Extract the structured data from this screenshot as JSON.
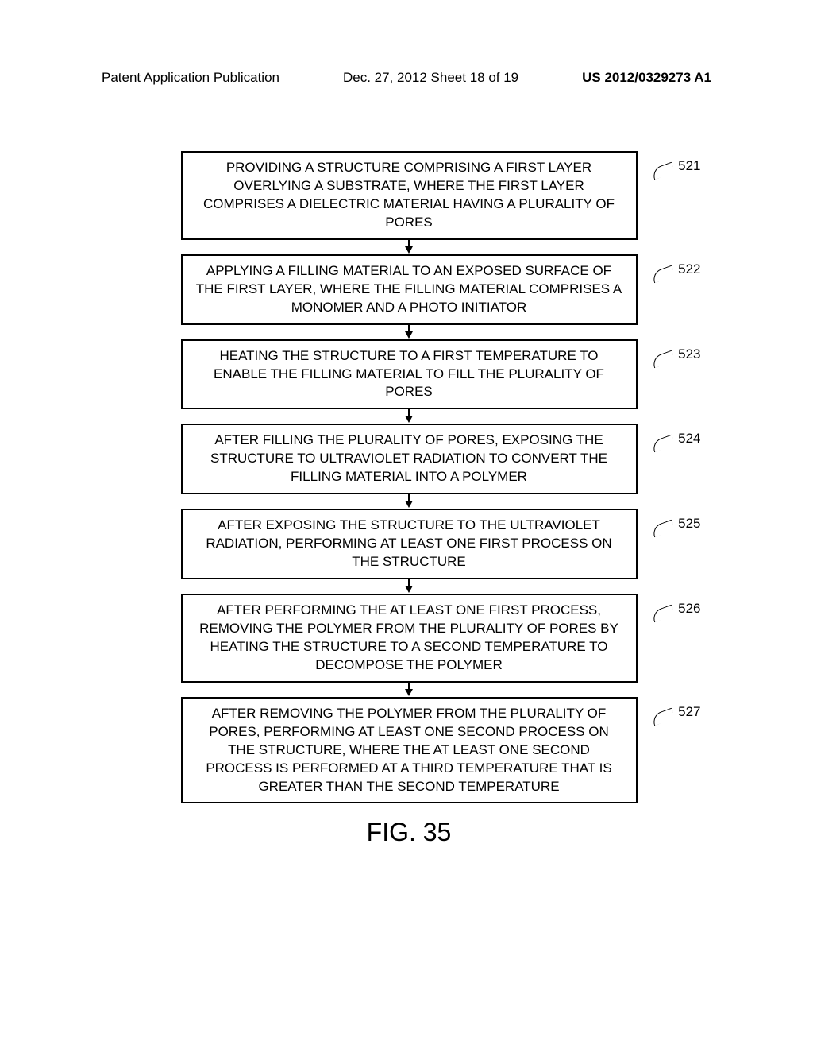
{
  "header": {
    "left": "Patent Application Publication",
    "center": "Dec. 27, 2012  Sheet 18 of 19",
    "right": "US 2012/0329273 A1"
  },
  "flowchart": {
    "type": "flowchart",
    "boxes": [
      {
        "text": "PROVIDING A STRUCTURE COMPRISING A FIRST LAYER OVERLYING A SUBSTRATE, WHERE THE FIRST LAYER COMPRISES A DIELECTRIC MATERIAL HAVING A PLURALITY OF PORES",
        "label": "521"
      },
      {
        "text": "APPLYING A FILLING MATERIAL TO AN EXPOSED SURFACE OF THE FIRST LAYER, WHERE THE FILLING MATERIAL COMPRISES A MONOMER AND A PHOTO INITIATOR",
        "label": "522"
      },
      {
        "text": "HEATING THE STRUCTURE TO A FIRST TEMPERATURE TO ENABLE THE FILLING MATERIAL TO FILL THE PLURALITY OF PORES",
        "label": "523"
      },
      {
        "text": "AFTER FILLING THE PLURALITY OF PORES, EXPOSING THE STRUCTURE TO ULTRAVIOLET RADIATION TO CONVERT THE FILLING MATERIAL INTO A POLYMER",
        "label": "524"
      },
      {
        "text": "AFTER EXPOSING THE STRUCTURE TO THE ULTRAVIOLET RADIATION, PERFORMING AT LEAST ONE FIRST PROCESS ON THE STRUCTURE",
        "label": "525"
      },
      {
        "text": "AFTER PERFORMING THE AT LEAST ONE FIRST PROCESS, REMOVING THE POLYMER FROM THE PLURALITY OF PORES BY HEATING THE STRUCTURE TO A SECOND TEMPERATURE TO DECOMPOSE THE POLYMER",
        "label": "526"
      },
      {
        "text": "AFTER REMOVING THE POLYMER FROM THE PLURALITY OF PORES, PERFORMING AT LEAST ONE SECOND PROCESS ON THE STRUCTURE, WHERE THE AT LEAST ONE SECOND PROCESS IS PERFORMED AT A THIRD TEMPERATURE THAT IS GREATER THAN THE SECOND TEMPERATURE",
        "label": "527"
      }
    ],
    "box_border_color": "#000000",
    "box_background": "#ffffff",
    "font_size": 17,
    "arrow_color": "#000000"
  },
  "figure_label": "FIG. 35"
}
